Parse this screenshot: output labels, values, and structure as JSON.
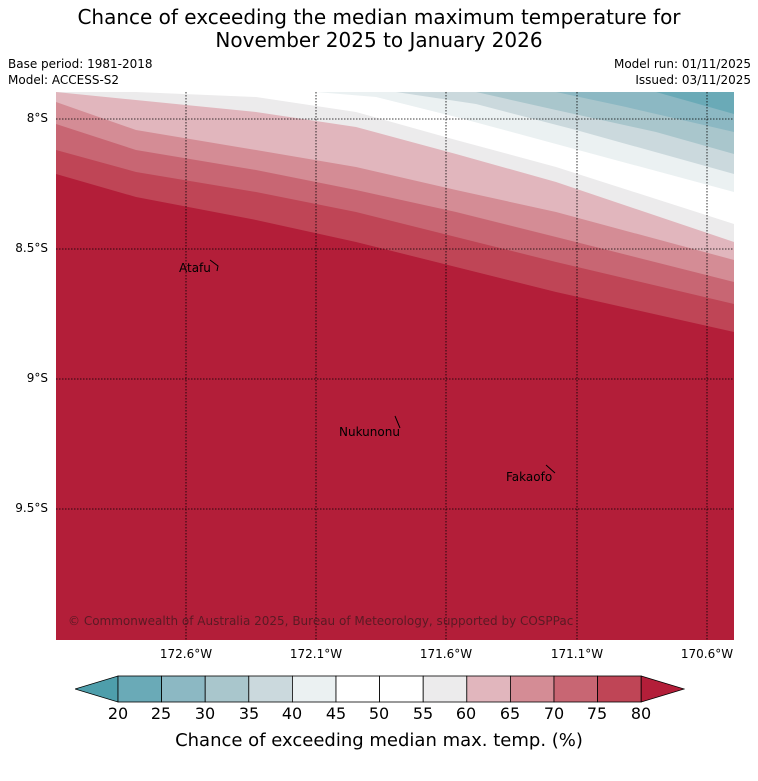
{
  "header": {
    "title_line1": "Chance of exceeding the median maximum temperature for",
    "title_line2": "November 2025 to January 2026",
    "base_period": "Base period: 1981-2018",
    "model": "Model: ACCESS-S2",
    "model_run": "Model run: 01/11/2025",
    "issued": "Issued: 03/11/2025"
  },
  "map": {
    "lat_ticks": [
      "8°S",
      "8.5°S",
      "9°S",
      "9.5°S"
    ],
    "lon_ticks": [
      "172.6°W",
      "172.1°W",
      "171.6°W",
      "171.1°W",
      "170.6°W"
    ],
    "places": [
      "Atafu",
      "Nukunonu",
      "Fakaofo"
    ],
    "copyright": "© Commonwealth of Australia 2025, Bureau of Meteorology, supported by COSPPac",
    "dominant_color": "#b31e39"
  },
  "colorbar": {
    "labels": [
      "20",
      "25",
      "30",
      "35",
      "40",
      "45",
      "50",
      "55",
      "60",
      "65",
      "70",
      "75",
      "80"
    ],
    "colors": [
      "#4e9eab",
      "#6aaab7",
      "#8cb8c3",
      "#a9c6cc",
      "#cbd9dd",
      "#ebf1f2",
      "#ffffff",
      "#ffffff",
      "#ecebec",
      "#e1b6bd",
      "#d48c95",
      "#c86673",
      "#bf4556",
      "#b31e39"
    ],
    "title": "Chance of exceeding median max. temp. (%)"
  }
}
